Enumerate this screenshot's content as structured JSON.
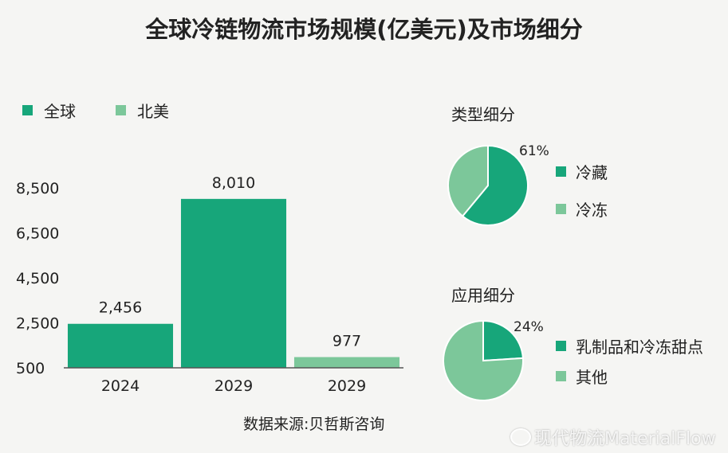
{
  "title": "全球冷链物流市场规模(亿美元)及市场细分",
  "colors": {
    "global": "#17a67a",
    "north_america": "#7cc79a"
  },
  "legend": [
    {
      "label": "全球",
      "color": "#17a67a"
    },
    {
      "label": "北美",
      "color": "#7cc79a"
    }
  ],
  "source": "数据来源:贝哲斯咨询",
  "watermark": "现代物流MaterialFlow",
  "chart_data": [
    {
      "type": "bar",
      "title": "全球冷链物流市场规模(亿美元)",
      "categories": [
        "2024",
        "2029",
        "2029"
      ],
      "series": [
        {
          "name": "全球",
          "values": [
            2456,
            8010,
            null
          ],
          "color": "#17a67a"
        },
        {
          "name": "北美",
          "values": [
            null,
            null,
            977
          ],
          "color": "#7cc79a"
        }
      ],
      "value_labels": [
        "2,456",
        "8,010",
        "977"
      ],
      "yticks": [
        "500",
        "2,500",
        "4,500",
        "6,500",
        "8,500"
      ],
      "ytick_values": [
        500,
        2500,
        4500,
        6500,
        8500
      ],
      "ylim": [
        500,
        8500
      ],
      "grid": false,
      "legend_position": "top-left"
    },
    {
      "type": "pie",
      "title": "类型细分",
      "slices": [
        {
          "label": "冷藏",
          "value": 61,
          "color": "#17a67a"
        },
        {
          "label": "冷冻",
          "value": 39,
          "color": "#7cc79a"
        }
      ],
      "annotation": "61%"
    },
    {
      "type": "pie",
      "title": "应用细分",
      "slices": [
        {
          "label": "乳制品和冷冻甜点",
          "value": 24,
          "color": "#17a67a"
        },
        {
          "label": "其他",
          "value": 76,
          "color": "#7cc79a"
        }
      ],
      "annotation": "24%"
    }
  ]
}
